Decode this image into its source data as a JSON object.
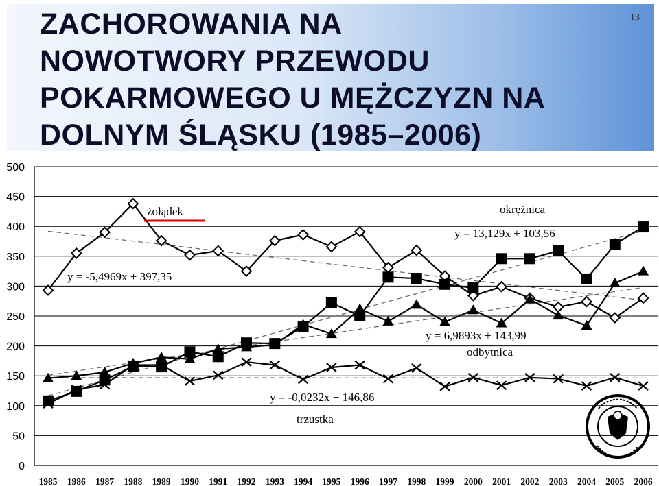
{
  "slide": {
    "title": "ZACHOROWANIA NA\nNOWOTWORY PRZEWODU\nPOKARMOWEGO U MĘŻCZYZN NA\nDOLNYM ŚLĄSKU (1985–2006)",
    "page_number": "13"
  },
  "colors": {
    "header_gradient_end": "#5f93d8",
    "zoladek_underline": "#d40000"
  },
  "chart_data": {
    "type": "line",
    "ylim": [
      0,
      500
    ],
    "yticks": [
      0,
      50,
      100,
      150,
      200,
      250,
      300,
      350,
      400,
      450,
      500
    ],
    "categories": [
      "1985",
      "1986",
      "1987",
      "1988",
      "1989",
      "1990",
      "1991",
      "1992",
      "1993",
      "1994",
      "1995",
      "1996",
      "1997",
      "1998",
      "1999",
      "2000",
      "2001",
      "2002",
      "2003",
      "2004",
      "2005",
      "2006"
    ],
    "grid": "horizontal",
    "series": [
      {
        "name": "żołądek",
        "marker": "diamond",
        "values": [
          293,
          355,
          390,
          438,
          376,
          352,
          359,
          325,
          376,
          386,
          366,
          391,
          331,
          360,
          317,
          284,
          299,
          280,
          265,
          274,
          247,
          280
        ],
        "trend_equation": "y = -5,4969x + 397,35",
        "trend": [
          -5.4969,
          397.35
        ]
      },
      {
        "name": "okrężnica",
        "marker": "square",
        "values": [
          108,
          124,
          143,
          166,
          165,
          190,
          182,
          205,
          204,
          232,
          272,
          250,
          315,
          313,
          303,
          297,
          346,
          346,
          359,
          312,
          370,
          399
        ],
        "trend_equation": "y = 13,129x + 103,56",
        "trend": [
          13.129,
          103.56
        ]
      },
      {
        "name": "odbytnica",
        "marker": "triangle",
        "values": [
          146,
          150,
          156,
          171,
          181,
          178,
          195,
          198,
          202,
          236,
          220,
          262,
          241,
          269,
          240,
          260,
          238,
          278,
          251,
          234,
          305,
          325
        ],
        "trend_equation": "y = 6,9893x + 143,99",
        "trend": [
          6.9893,
          143.99
        ]
      },
      {
        "name": "trzustka",
        "marker": "x",
        "values": [
          103,
          127,
          135,
          168,
          168,
          141,
          151,
          173,
          168,
          144,
          164,
          168,
          145,
          163,
          132,
          147,
          134,
          147,
          145,
          133,
          147,
          133
        ],
        "trend_equation": "y = -0,0232x + 146,86",
        "trend": [
          -0.0232,
          146.86
        ]
      }
    ]
  }
}
